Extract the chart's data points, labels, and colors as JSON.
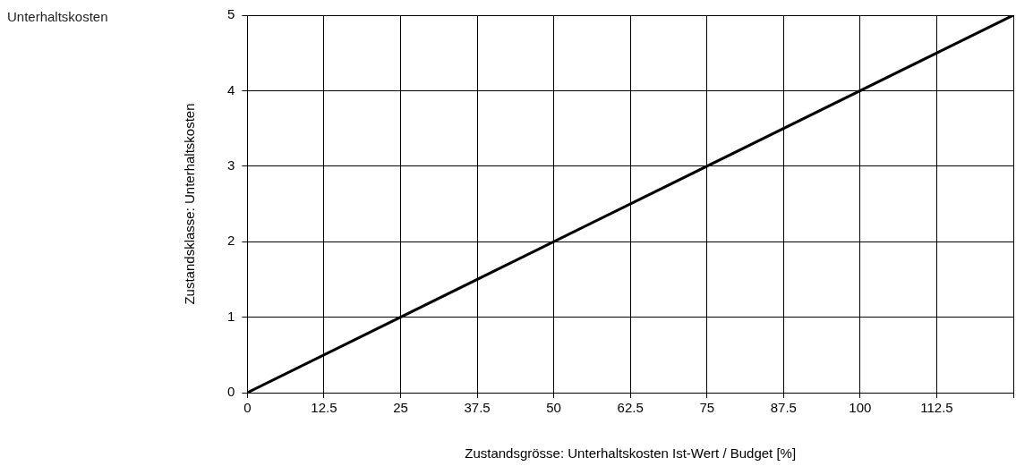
{
  "chart_data": {
    "type": "line",
    "title": "Unterhaltskosten",
    "xlabel": "Zustandsgrösse: Unterhaltskosten Ist-Wert / Budget [%]",
    "ylabel": "Zustandsklasse: Unterhaltskosten",
    "x": [
      0,
      125
    ],
    "series": [
      {
        "color": "#000000",
        "values": [
          0,
          5
        ]
      }
    ],
    "xlim": [
      0,
      125
    ],
    "xticks": [
      0,
      12.5,
      25,
      37.5,
      50,
      62.5,
      75,
      87.5,
      100,
      112.5,
      {
        "value": 125,
        "label": null
      }
    ],
    "ylim": [
      0,
      5
    ],
    "yticks": [
      0,
      1,
      2,
      3,
      4,
      5
    ],
    "grid": true,
    "legend": false,
    "marker": "none",
    "line_style": "solid"
  }
}
